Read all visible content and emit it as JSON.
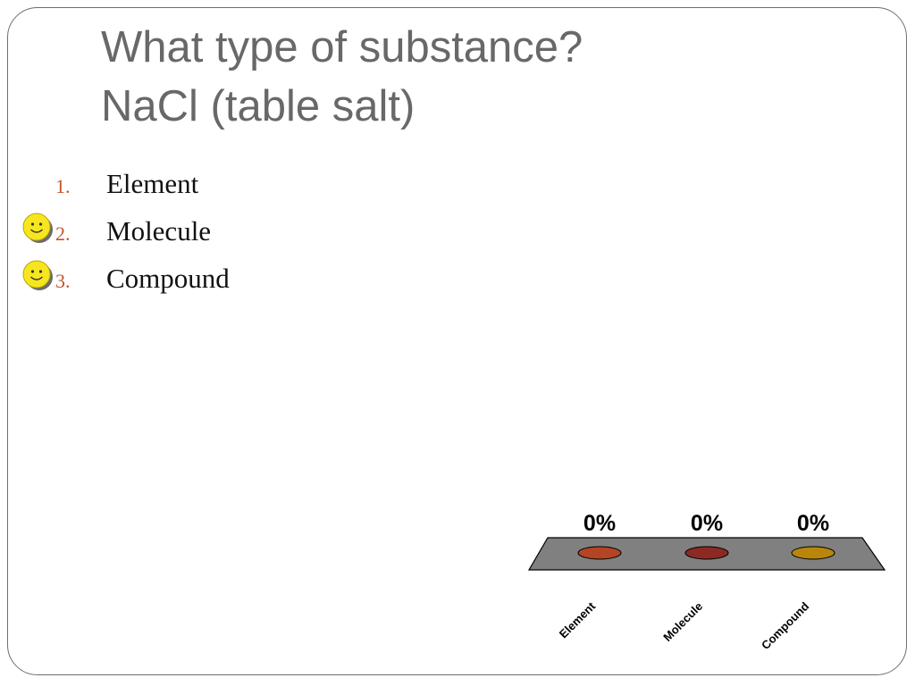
{
  "slide": {
    "title_lines": [
      "What type of substance?",
      "NaCl (table salt)"
    ]
  },
  "options": [
    {
      "number": "1.",
      "label": "Element",
      "selected": false
    },
    {
      "number": "2.",
      "label": "Molecule",
      "selected": true
    },
    {
      "number": "3.",
      "label": "Compound",
      "selected": true
    }
  ],
  "icons": {
    "selection_marker": "smiley-face-icon"
  },
  "colors": {
    "title": "#6a6767",
    "option_number": "#c2552b",
    "platform": "#808080",
    "element_bar": "#b34524",
    "molecule_bar": "#8b2a22",
    "compound_bar": "#b8860b"
  },
  "chart_data": {
    "type": "bar",
    "categories": [
      "Element",
      "Molecule",
      "Compound"
    ],
    "values": [
      0,
      0,
      0
    ],
    "value_labels": [
      "0%",
      "0%",
      "0%"
    ],
    "ylim": [
      0,
      100
    ],
    "colors": [
      "#b34524",
      "#8b2a22",
      "#b8860b"
    ],
    "title": "",
    "xlabel": "",
    "ylabel": ""
  }
}
